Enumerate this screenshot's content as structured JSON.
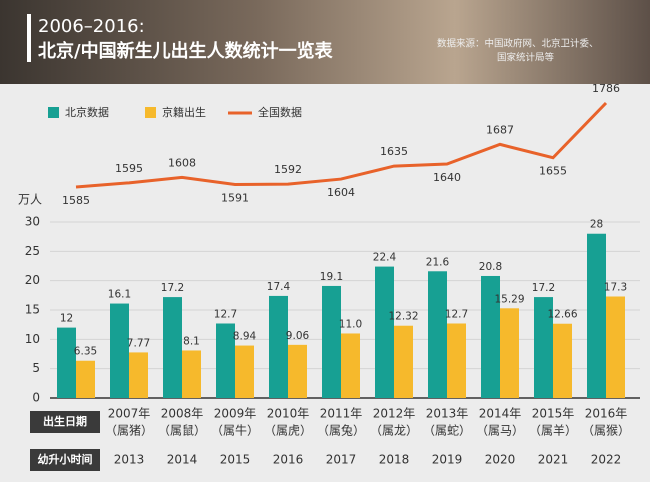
{
  "chart_data": {
    "type": "bar",
    "title": "2006–2016:",
    "subtitle": "北京/中国新生儿出生人数统计一览表",
    "source": [
      "数据来源：中国政府网、北京卫计委、",
      "国家统计局等"
    ],
    "y_label": "万人",
    "row_labels": [
      "出生日期",
      "幼升小时间"
    ],
    "categories": [
      null,
      "2007年",
      "2008年",
      "2009年",
      "2010年",
      "2011年",
      "2012年",
      "2013年",
      "2014年",
      "2015年",
      "2016年"
    ],
    "category_notes": [
      null,
      "（属猪）",
      "（属鼠）",
      "（属牛）",
      "（属虎）",
      "（属兔）",
      "（属龙）",
      "（属蛇）",
      "（属马）",
      "（属羊）",
      "（属猴）"
    ],
    "school_entry": [
      null,
      "2013",
      "2014",
      "2015",
      "2016",
      "2017",
      "2018",
      "2019",
      "2020",
      "2021",
      "2022"
    ],
    "ylim": [
      0,
      30
    ],
    "yticks": [
      0,
      5,
      10,
      15,
      20,
      25,
      30
    ],
    "grid": true,
    "series": [
      {
        "name": "北京数据",
        "color": "#17a093",
        "values": [
          12,
          16.1,
          17.2,
          12.7,
          17.4,
          19.1,
          22.4,
          21.6,
          20.8,
          17.2,
          28
        ]
      },
      {
        "name": "京籍出生",
        "color": "#f6b92c",
        "values": [
          6.35,
          7.77,
          8.1,
          8.94,
          9.06,
          11.0,
          12.32,
          12.7,
          15.29,
          12.66,
          17.3
        ],
        "value_labels": [
          "6.35",
          "7.77",
          "8.1",
          "8.94",
          "9.06",
          "11.0",
          "12.32",
          "12.7",
          "15.29",
          "12.66",
          "17.3"
        ]
      },
      {
        "name": "全国数据",
        "type": "line",
        "color": "#e8622a",
        "values": [
          1585,
          1595,
          1608,
          1591,
          1592,
          1604,
          1635,
          1640,
          1687,
          1655,
          1786
        ]
      }
    ]
  }
}
